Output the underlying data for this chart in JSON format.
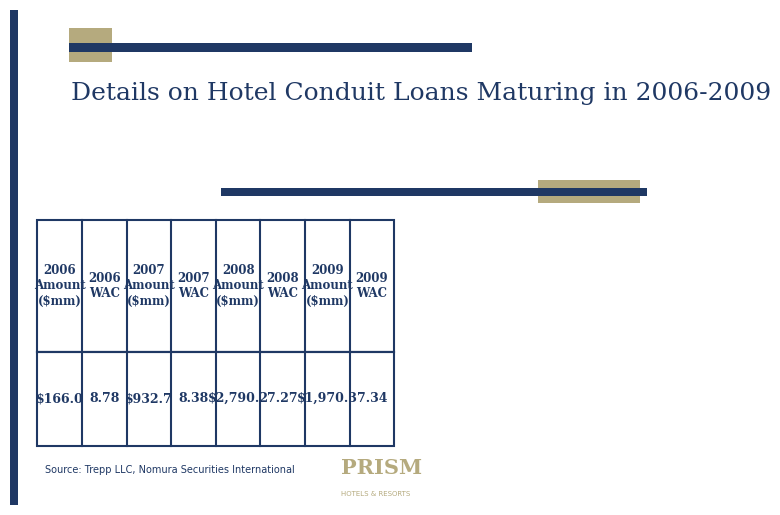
{
  "title": "Details on Hotel Conduit Loans Maturing in 2006-2009",
  "title_color": "#1F3864",
  "title_fontsize": 18,
  "background_color": "#FFFFFF",
  "accent_color_dark": "#1F3864",
  "accent_color_khaki": "#B5AA7E",
  "source_text": "Source: Trepp LLC, Nomura Securities International",
  "table_headers": [
    "2006\nAmount\n($mm)",
    "2006\nWAC",
    "2007\nAmount\n($mm)",
    "2007\nWAC",
    "2008\nAmount\n($mm)",
    "2008\nWAC",
    "2009\nAmount\n($mm)",
    "2009\nWAC"
  ],
  "table_values": [
    "$166.0",
    "8.78",
    "$932.7",
    "8.38",
    "$2,790.2",
    "7.27",
    "$1,970.3",
    "7.34"
  ],
  "table_text_color": "#1F3864",
  "table_border_color": "#1F3864",
  "logo_text": "PRISM",
  "logo_subtext": "HOTELS & RESORTS",
  "logo_color": "#B5AA7E"
}
